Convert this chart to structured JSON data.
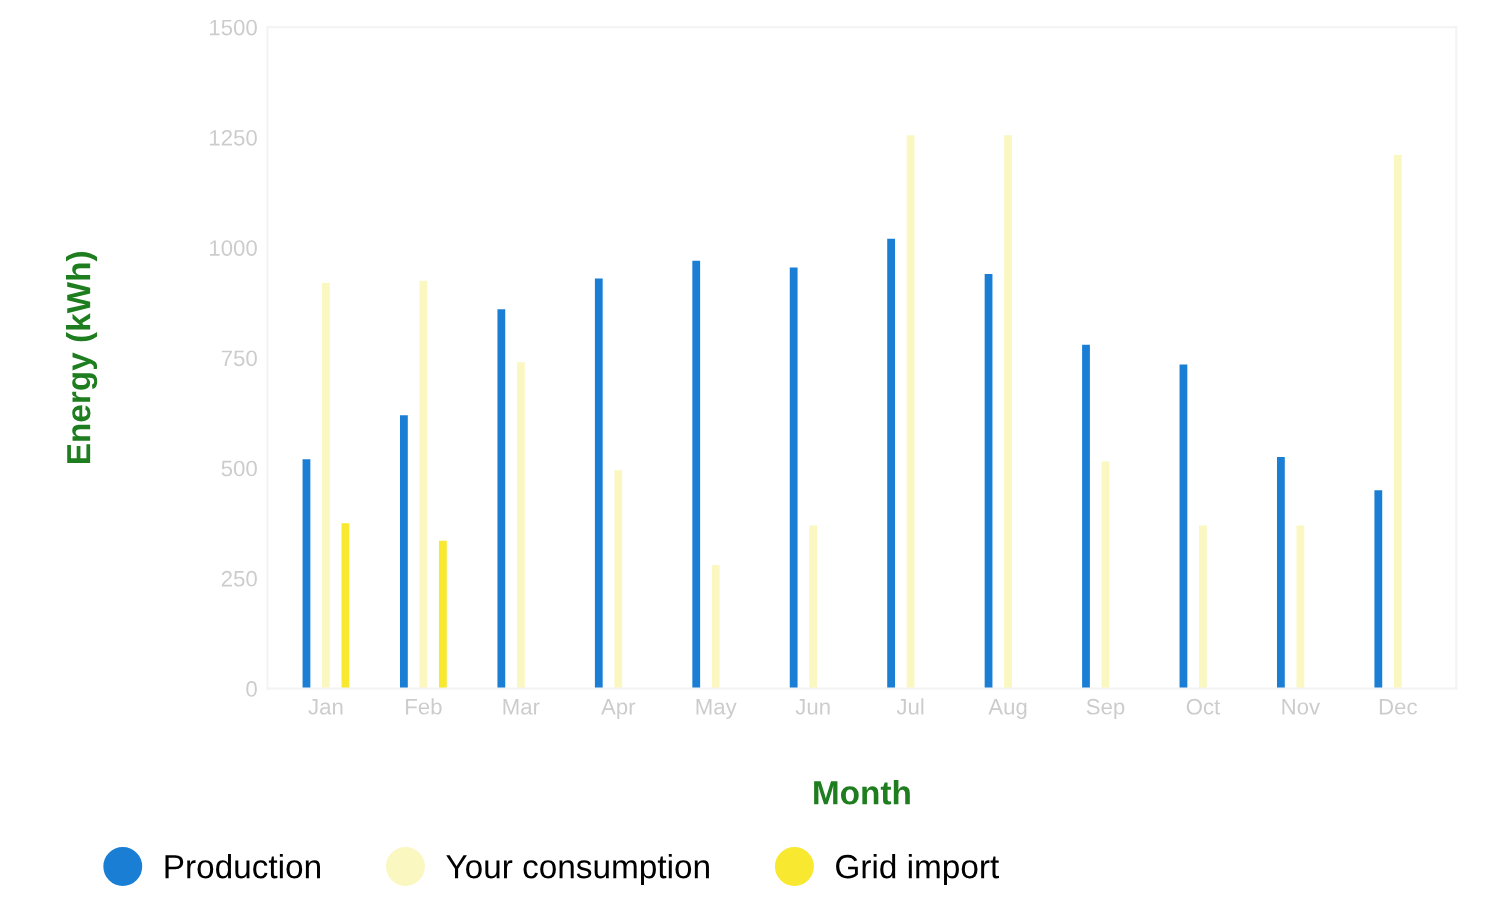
{
  "chart_data": {
    "type": "bar",
    "xlabel": "Month",
    "ylabel": "Energy (kWh)",
    "categories": [
      "Jan",
      "Feb",
      "Mar",
      "Apr",
      "May",
      "Jun",
      "Jul",
      "Aug",
      "Sep",
      "Oct",
      "Nov",
      "Dec"
    ],
    "series": [
      {
        "name": "Production",
        "color": "#1a7fd4",
        "values": [
          520,
          620,
          860,
          930,
          970,
          955,
          1020,
          940,
          780,
          735,
          525,
          450
        ]
      },
      {
        "name": "Your consumption",
        "color": "#fbf7c0",
        "values": [
          920,
          925,
          740,
          495,
          280,
          370,
          1255,
          1255,
          515,
          370,
          370,
          1210
        ]
      },
      {
        "name": "Grid import",
        "color": "#f8e830",
        "values": [
          375,
          335,
          null,
          null,
          null,
          null,
          null,
          null,
          null,
          null,
          null,
          null
        ]
      }
    ],
    "ylim": [
      0,
      1500
    ],
    "yticks": [
      0,
      250,
      500,
      750,
      1000,
      1250,
      1500
    ],
    "grid": false,
    "legend": "bottom left"
  }
}
